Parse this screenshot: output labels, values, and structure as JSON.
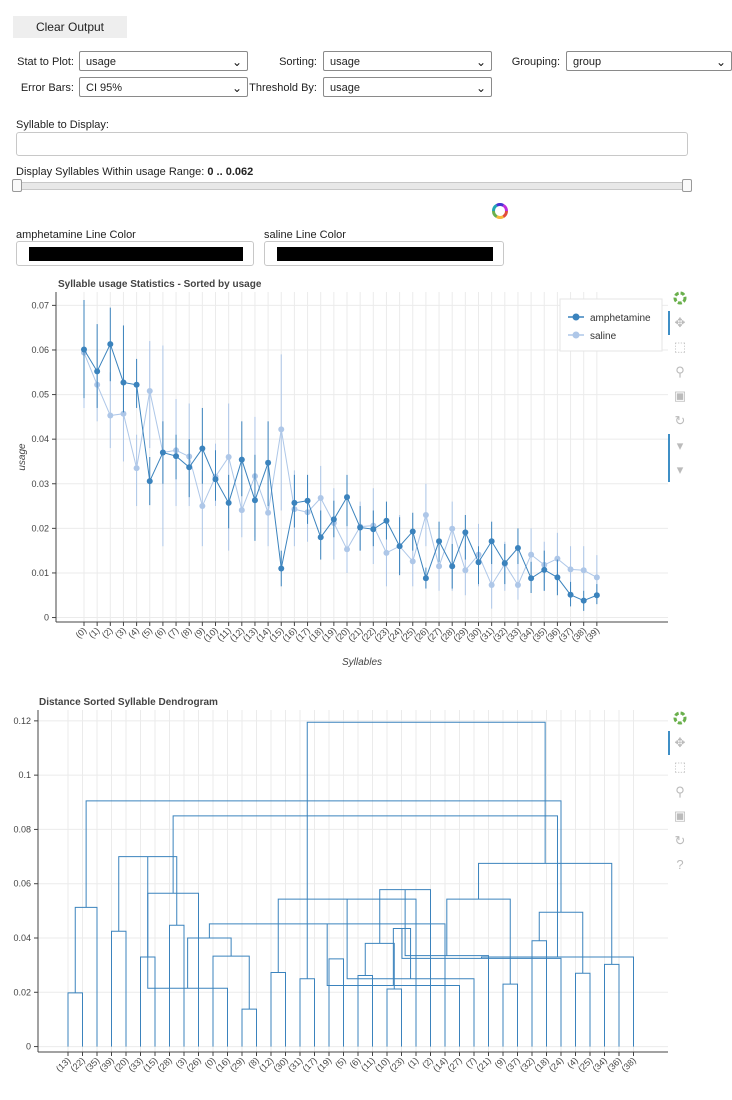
{
  "controls": {
    "clear_output": "Clear Output",
    "stat_label": "Stat to Plot:",
    "stat_value": "usage",
    "sorting_label": "Sorting:",
    "sorting_value": "usage",
    "grouping_label": "Grouping:",
    "grouping_value": "group",
    "errorbars_label": "Error Bars:",
    "errorbars_value": "CI 95%",
    "threshold_label": "Threshold By:",
    "threshold_value": "usage",
    "syllable_display_label": "Syllable to Display:",
    "range_label_prefix": "Display Syllables Within usage Range: ",
    "range_value": "0 .. 0.062",
    "range_slider": {
      "min_fraction": 0.0,
      "max_fraction": 1.0
    },
    "amph_color_label": "amphetamine Line Color",
    "saline_color_label": "saline Line Color",
    "amph_color": "#000000",
    "saline_color": "#000000"
  },
  "icons": [
    "bokeh-logo-icon",
    "pan-icon",
    "box-zoom-icon",
    "wheel-zoom-icon",
    "save-icon",
    "reset-icon",
    "hover-icon",
    "help-icon"
  ],
  "chart_data": [
    {
      "type": "line",
      "title": "Syllable usage Statistics - Sorted by usage",
      "xlabel": "Syllables",
      "ylabel": "usage",
      "categories": [
        "(0)",
        "(1)",
        "(2)",
        "(3)",
        "(4)",
        "(5)",
        "(6)",
        "(7)",
        "(8)",
        "(9)",
        "(10)",
        "(11)",
        "(12)",
        "(13)",
        "(14)",
        "(15)",
        "(16)",
        "(17)",
        "(18)",
        "(19)",
        "(20)",
        "(21)",
        "(22)",
        "(23)",
        "(24)",
        "(25)",
        "(26)",
        "(27)",
        "(28)",
        "(29)",
        "(30)",
        "(31)",
        "(32)",
        "(33)",
        "(34)",
        "(35)",
        "(36)",
        "(37)",
        "(38)",
        "(39)"
      ],
      "yticks": [
        0,
        0.01,
        0.02,
        0.03,
        0.04,
        0.05,
        0.06,
        0.07
      ],
      "ylim": [
        -0.001,
        0.073
      ],
      "grid": true,
      "legend_position": "top-right",
      "series": [
        {
          "name": "amphetamine",
          "color": "#3b83bd",
          "values": [
            0.0601,
            0.0552,
            0.0613,
            0.0527,
            0.0522,
            0.0306,
            0.037,
            0.0362,
            0.0337,
            0.0379,
            0.031,
            0.0257,
            0.0354,
            0.0263,
            0.0347,
            0.011,
            0.0257,
            0.0262,
            0.018,
            0.022,
            0.027,
            0.0202,
            0.0198,
            0.0217,
            0.016,
            0.0193,
            0.0088,
            0.0171,
            0.0115,
            0.0191,
            0.0124,
            0.0171,
            0.0122,
            0.0156,
            0.0088,
            0.0107,
            0.009,
            0.0051,
            0.0038,
            0.005
          ],
          "ci_low": [
            0.0492,
            0.047,
            0.053,
            0.046,
            0.047,
            0.0252,
            0.03,
            0.031,
            0.027,
            0.03,
            0.0262,
            0.02,
            0.0272,
            0.0172,
            0.025,
            0.007,
            0.0202,
            0.021,
            0.013,
            0.018,
            0.0205,
            0.015,
            0.016,
            0.0175,
            0.0095,
            0.015,
            0.0065,
            0.0125,
            0.0065,
            0.013,
            0.0075,
            0.012,
            0.0075,
            0.012,
            0.0055,
            0.006,
            0.005,
            0.0025,
            0.0015,
            0.003
          ],
          "ci_high": [
            0.0712,
            0.0658,
            0.0695,
            0.0655,
            0.058,
            0.036,
            0.044,
            0.041,
            0.04,
            0.047,
            0.0375,
            0.032,
            0.044,
            0.0365,
            0.044,
            0.015,
            0.032,
            0.032,
            0.024,
            0.0262,
            0.032,
            0.025,
            0.024,
            0.026,
            0.0225,
            0.0235,
            0.0112,
            0.0215,
            0.0165,
            0.023,
            0.016,
            0.0215,
            0.0165,
            0.02,
            0.0125,
            0.015,
            0.013,
            0.008,
            0.006,
            0.0075
          ]
        },
        {
          "name": "saline",
          "color": "#aec7e8",
          "values": [
            0.0594,
            0.0522,
            0.0453,
            0.0457,
            0.0335,
            0.0508,
            0.037,
            0.0375,
            0.0361,
            0.025,
            0.0316,
            0.036,
            0.0241,
            0.0317,
            0.0235,
            0.0422,
            0.0243,
            0.0236,
            0.0268,
            0.0212,
            0.0153,
            0.0204,
            0.0206,
            0.0145,
            0.016,
            0.0126,
            0.023,
            0.0115,
            0.0199,
            0.0106,
            0.0141,
            0.0073,
            0.012,
            0.0073,
            0.0141,
            0.0118,
            0.0132,
            0.0108,
            0.0106,
            0.009
          ],
          "ci_low": [
            0.047,
            0.044,
            0.038,
            0.035,
            0.025,
            0.038,
            0.016,
            0.025,
            0.025,
            0.016,
            0.025,
            0.015,
            0.018,
            0.018,
            0.016,
            0.024,
            0.016,
            0.017,
            0.019,
            0.013,
            0.01,
            0.015,
            0.012,
            0.007,
            0.01,
            0.007,
            0.016,
            0.006,
            0.006,
            0.005,
            0.007,
            0.002,
            0.006,
            0.004,
            0.009,
            0.006,
            0.006,
            0.005,
            0.006,
            0.004
          ],
          "ci_high": [
            0.071,
            0.06,
            0.055,
            0.056,
            0.041,
            0.062,
            0.061,
            0.049,
            0.048,
            0.033,
            0.039,
            0.048,
            0.032,
            0.045,
            0.031,
            0.059,
            0.033,
            0.03,
            0.034,
            0.029,
            0.021,
            0.026,
            0.029,
            0.021,
            0.023,
            0.018,
            0.03,
            0.016,
            0.026,
            0.016,
            0.021,
            0.015,
            0.017,
            0.013,
            0.02,
            0.017,
            0.019,
            0.016,
            0.016,
            0.014
          ]
        }
      ]
    },
    {
      "type": "dendrogram",
      "title": "Distance Sorted Syllable Dendrogram",
      "leaf_labels": [
        "(13)",
        "(22)",
        "(35)",
        "(39)",
        "(20)",
        "(33)",
        "(15)",
        "(28)",
        "(3)",
        "(26)",
        "(0)",
        "(16)",
        "(29)",
        "(8)",
        "(12)",
        "(30)",
        "(31)",
        "(17)",
        "(19)",
        "(5)",
        "(6)",
        "(11)",
        "(10)",
        "(23)",
        "(1)",
        "(2)",
        "(14)",
        "(27)",
        "(7)",
        "(21)",
        "(9)",
        "(37)",
        "(32)",
        "(18)",
        "(24)",
        "(4)",
        "(25)",
        "(34)",
        "(36)",
        "(38)"
      ],
      "yticks": [
        0,
        0.02,
        0.04,
        0.06,
        0.08,
        0.1,
        0.12
      ],
      "ylim": [
        -0.002,
        0.124
      ],
      "color": "#3b83bd",
      "merges": [
        {
          "l": 0,
          "r": 1,
          "h": 0.0198
        },
        {
          "l": 40,
          "r": 2,
          "h": 0.0513
        },
        {
          "l": 3,
          "r": 4,
          "h": 0.0425
        },
        {
          "l": 5,
          "r": 6,
          "h": 0.033
        },
        {
          "l": 7,
          "r": 8,
          "h": 0.0447
        },
        {
          "l": 43,
          "r": 9,
          "h": 0.0565
        },
        {
          "l": 42,
          "r": 44,
          "h": 0.07
        },
        {
          "l": 12,
          "r": 13,
          "h": 0.0138
        },
        {
          "l": 11,
          "r": 46,
          "h": 0.0215
        },
        {
          "l": 10,
          "r": 47,
          "h": 0.0333
        },
        {
          "l": 16,
          "r": 17,
          "h": 0.025
        },
        {
          "l": 18,
          "r": 19,
          "h": 0.0323
        },
        {
          "l": 48,
          "r": 49,
          "h": 0.04
        },
        {
          "l": 20,
          "r": 21,
          "h": 0.0262
        },
        {
          "l": 22,
          "r": 23,
          "h": 0.0212
        },
        {
          "l": 14,
          "r": 15,
          "h": 0.0273
        },
        {
          "l": 53,
          "r": 54,
          "h": 0.038
        },
        {
          "l": 26,
          "r": 52,
          "h": 0.0452
        },
        {
          "l": 55,
          "r": 24,
          "h": 0.0543
        },
        {
          "l": 56,
          "r": 25,
          "h": 0.0578
        },
        {
          "l": 57,
          "r": 27,
          "h": 0.0225
        },
        {
          "l": 58,
          "r": 28,
          "h": 0.025
        },
        {
          "l": 59,
          "r": 29,
          "h": 0.0335
        },
        {
          "l": 30,
          "r": 31,
          "h": 0.023
        },
        {
          "l": 60,
          "r": 61,
          "h": 0.0435
        },
        {
          "l": 62,
          "r": 63,
          "h": 0.0543
        },
        {
          "l": 32,
          "r": 33,
          "h": 0.039
        },
        {
          "l": 64,
          "r": 34,
          "h": 0.0325
        },
        {
          "l": 35,
          "r": 36,
          "h": 0.027
        },
        {
          "l": 37,
          "r": 38,
          "h": 0.0303
        },
        {
          "l": 39,
          "r": 67,
          "h": 0.033
        },
        {
          "l": 66,
          "r": 68,
          "h": 0.0495
        },
        {
          "l": 65,
          "r": 69,
          "h": 0.0675
        },
        {
          "l": 45,
          "r": 70,
          "h": 0.085
        },
        {
          "l": 41,
          "r": 71,
          "h": 0.0905
        },
        {
          "l": 50,
          "r": 72,
          "h": 0.1195
        }
      ]
    }
  ]
}
